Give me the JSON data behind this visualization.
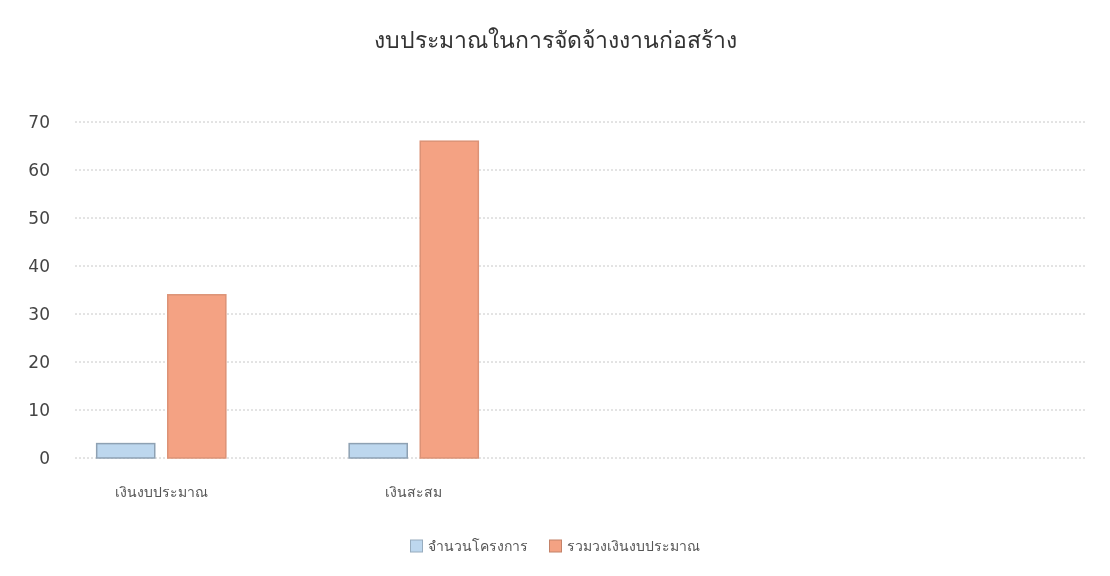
{
  "chart_data": {
    "type": "bar",
    "title": "งบประมาณในการจัดจ้างงานก่อสร้าง",
    "categories": [
      "เงินงบประมาณ",
      "เงินสะสม",
      null,
      null
    ],
    "series": [
      {
        "name": "จำนวนโครงการ",
        "color": "#bdd7ee",
        "values": [
          3,
          3,
          null,
          null
        ]
      },
      {
        "name": "รวมวงเงินงบประมาณ",
        "color": "#f4a283",
        "values": [
          34,
          66,
          null,
          null
        ]
      }
    ],
    "ylim": [
      0,
      70
    ],
    "yticks": [
      0,
      10,
      20,
      30,
      40,
      50,
      60,
      70
    ],
    "grid": "y",
    "legend": "bottom"
  }
}
